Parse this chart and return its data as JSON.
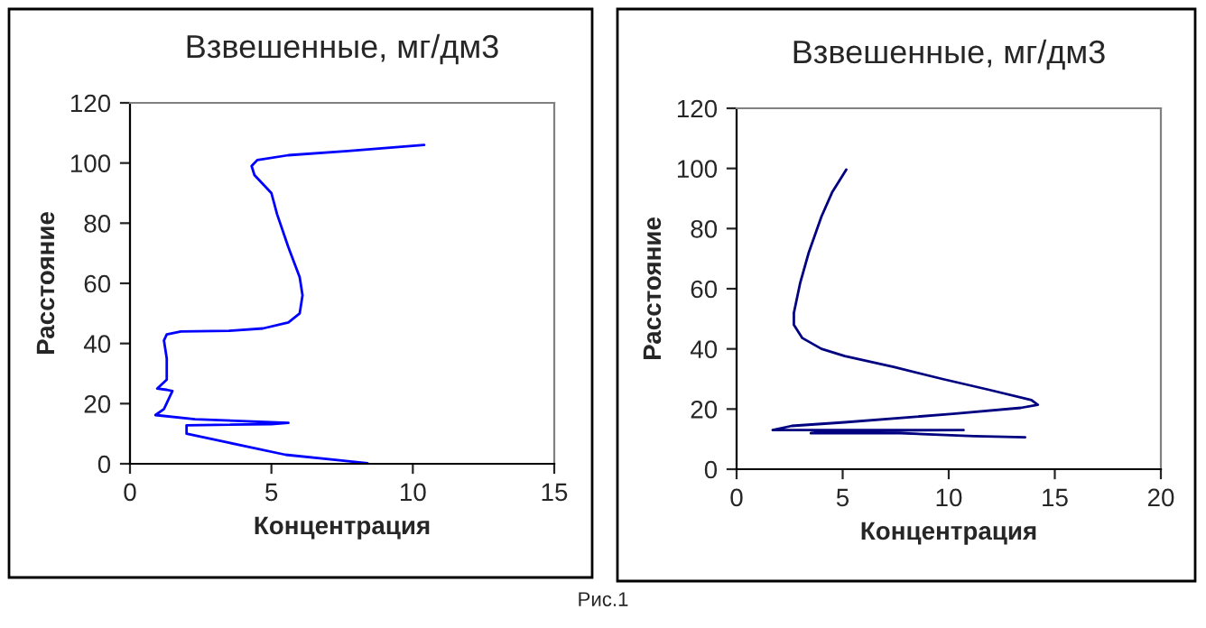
{
  "chart_data": [
    {
      "type": "line",
      "title": "Взвешенные, мг/дм3",
      "annotations": [
        "Рис.1"
      ],
      "xlabel": "Концентрация",
      "ylabel": "Расстояние",
      "xlim": [
        0,
        15
      ],
      "xticks": [
        0,
        5,
        10,
        15
      ],
      "ylim": [
        0,
        120
      ],
      "yticks": [
        0,
        20,
        40,
        60,
        80,
        100,
        120
      ],
      "grid": false,
      "legend": false,
      "series": [
        {
          "color": "#0000ff",
          "x": [
            8.4,
            5.5,
            3.5,
            2.0,
            2.0,
            5.0,
            5.6,
            2.3,
            0.9,
            1.2,
            1.5,
            1.3,
            0.96,
            1.3,
            1.3,
            1.2,
            1.3,
            1.8,
            3.5,
            4.7,
            5.6,
            6.0,
            6.1,
            6.0,
            5.6,
            5.2,
            5.0,
            4.7,
            4.4,
            4.3,
            4.5,
            5.6,
            7.7,
            10.4
          ],
          "values": [
            0.2,
            3,
            7,
            10,
            12.8,
            13.2,
            13.6,
            14.8,
            16.2,
            18.2,
            24.2,
            24.6,
            25,
            28,
            35,
            41,
            43,
            44,
            44.2,
            45,
            47,
            50,
            56,
            62,
            72,
            83,
            90,
            93,
            96,
            99,
            101,
            102.6,
            104,
            106
          ]
        }
      ]
    },
    {
      "type": "line",
      "title": "Взвешенные, мг/дм3",
      "xlabel": "Концентрация",
      "ylabel": "Расстояние",
      "xlim": [
        0,
        20
      ],
      "xticks": [
        0,
        5,
        10,
        15,
        20
      ],
      "ylim": [
        0,
        120
      ],
      "yticks": [
        0,
        20,
        40,
        60,
        80,
        100,
        120
      ],
      "grid": false,
      "legend": false,
      "series": [
        {
          "color": "#000080",
          "x": [
            5.17,
            4.5,
            4.0,
            3.4,
            3.0,
            2.7,
            2.7,
            3.1,
            4.0,
            5.1,
            7.4,
            9.7,
            11.9,
            13.9,
            14.2,
            13.4,
            10.2,
            5.1,
            2.6,
            1.7,
            10.7,
            4.5,
            3.5,
            7.7,
            11.2,
            13.6
          ],
          "values": [
            99.6,
            92,
            84,
            72,
            62,
            52,
            48,
            43.6,
            40,
            37.6,
            34,
            30,
            26.4,
            23,
            21.4,
            20.4,
            18.4,
            15.6,
            14.4,
            13,
            13,
            12.8,
            12,
            12,
            11,
            10.6
          ]
        }
      ]
    }
  ]
}
